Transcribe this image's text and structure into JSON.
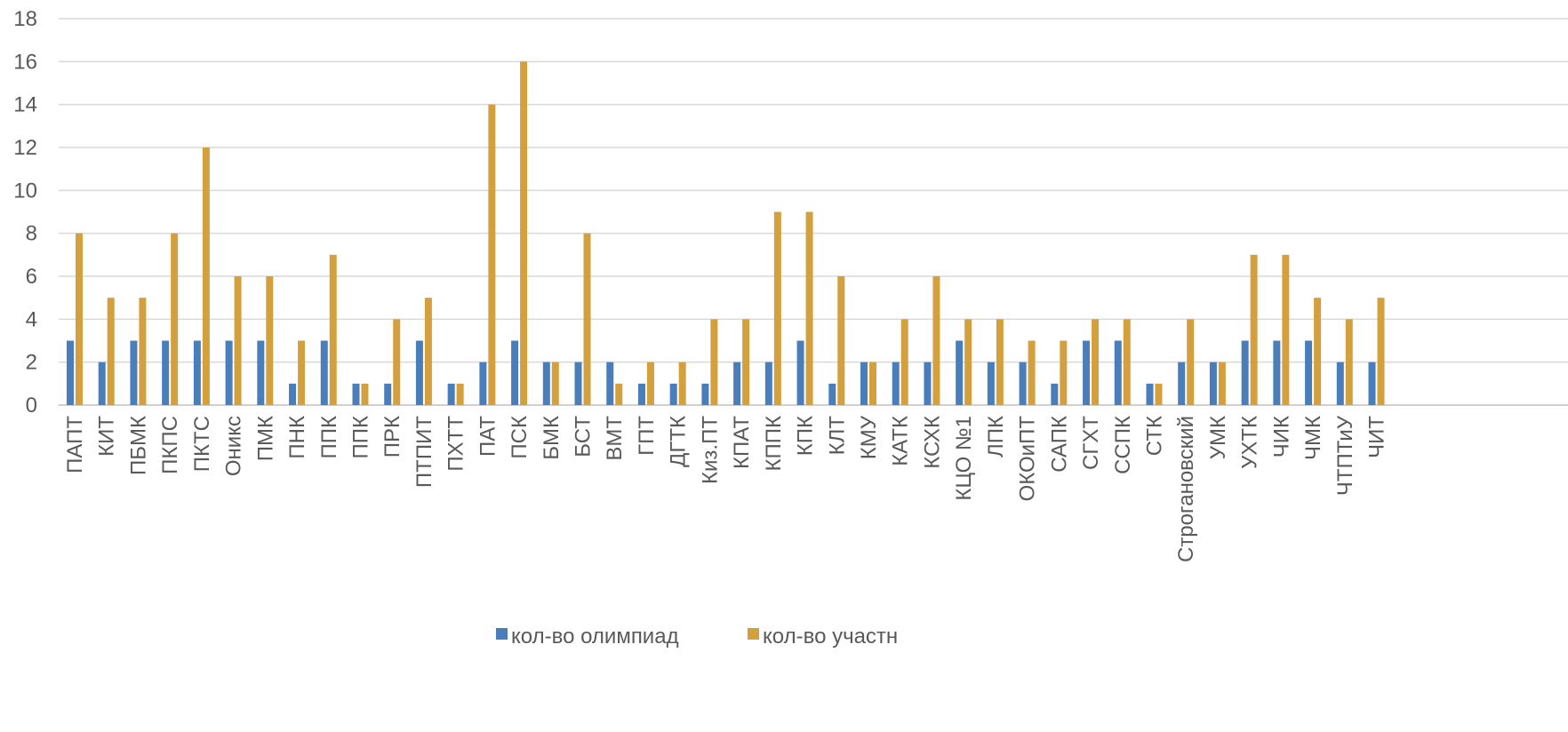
{
  "chart_data": {
    "type": "bar",
    "title": "",
    "xlabel": "",
    "ylabel": "",
    "ylim": [
      0,
      18
    ],
    "y_ticks": [
      0,
      2,
      4,
      6,
      8,
      10,
      12,
      14,
      16,
      18
    ],
    "grid": true,
    "legend_position": "bottom",
    "categories": [
      "ПАПТ",
      "КИТ",
      "ПБМК",
      "ПКПС",
      "ПКТС",
      "Оникс",
      "ПМК",
      "ПНК",
      "ППК",
      "ППК",
      "ПРК",
      "ПТПИТ",
      "ПХТТ",
      "ПАТ",
      "ПСК",
      "БМК",
      "БСТ",
      "ВМТ",
      "ГПТ",
      "ДГТК",
      "Киз.ПТ",
      "КПАТ",
      "КППК",
      "КПК",
      "КЛТ",
      "КМУ",
      "КАТК",
      "КСХК",
      "КЦО №1",
      "ЛПК",
      "ОКОиПТ",
      "САПК",
      "СГХТ",
      "ССПК",
      "СТК",
      "Строгановский",
      "УМК",
      "УХТК",
      "ЧИК",
      "ЧМК",
      "ЧТПТиУ",
      "ЧИТ"
    ],
    "series": [
      {
        "name": "кол-во олимпиад",
        "color": "#4a7ebb",
        "values": [
          3,
          2,
          3,
          3,
          3,
          3,
          3,
          1,
          3,
          1,
          1,
          3,
          1,
          2,
          3,
          2,
          2,
          2,
          1,
          1,
          1,
          2,
          2,
          3,
          1,
          2,
          2,
          2,
          3,
          2,
          2,
          1,
          3,
          3,
          1,
          2,
          2,
          3,
          3,
          3,
          2,
          2
        ]
      },
      {
        "name": "кол-во участн",
        "color": "#d4a03e",
        "values": [
          8,
          5,
          5,
          8,
          12,
          6,
          6,
          3,
          7,
          1,
          4,
          5,
          1,
          14,
          16,
          2,
          8,
          1,
          2,
          2,
          4,
          4,
          9,
          9,
          6,
          2,
          4,
          6,
          4,
          4,
          3,
          3,
          4,
          4,
          1,
          4,
          2,
          7,
          7,
          5,
          4,
          5
        ]
      }
    ]
  }
}
